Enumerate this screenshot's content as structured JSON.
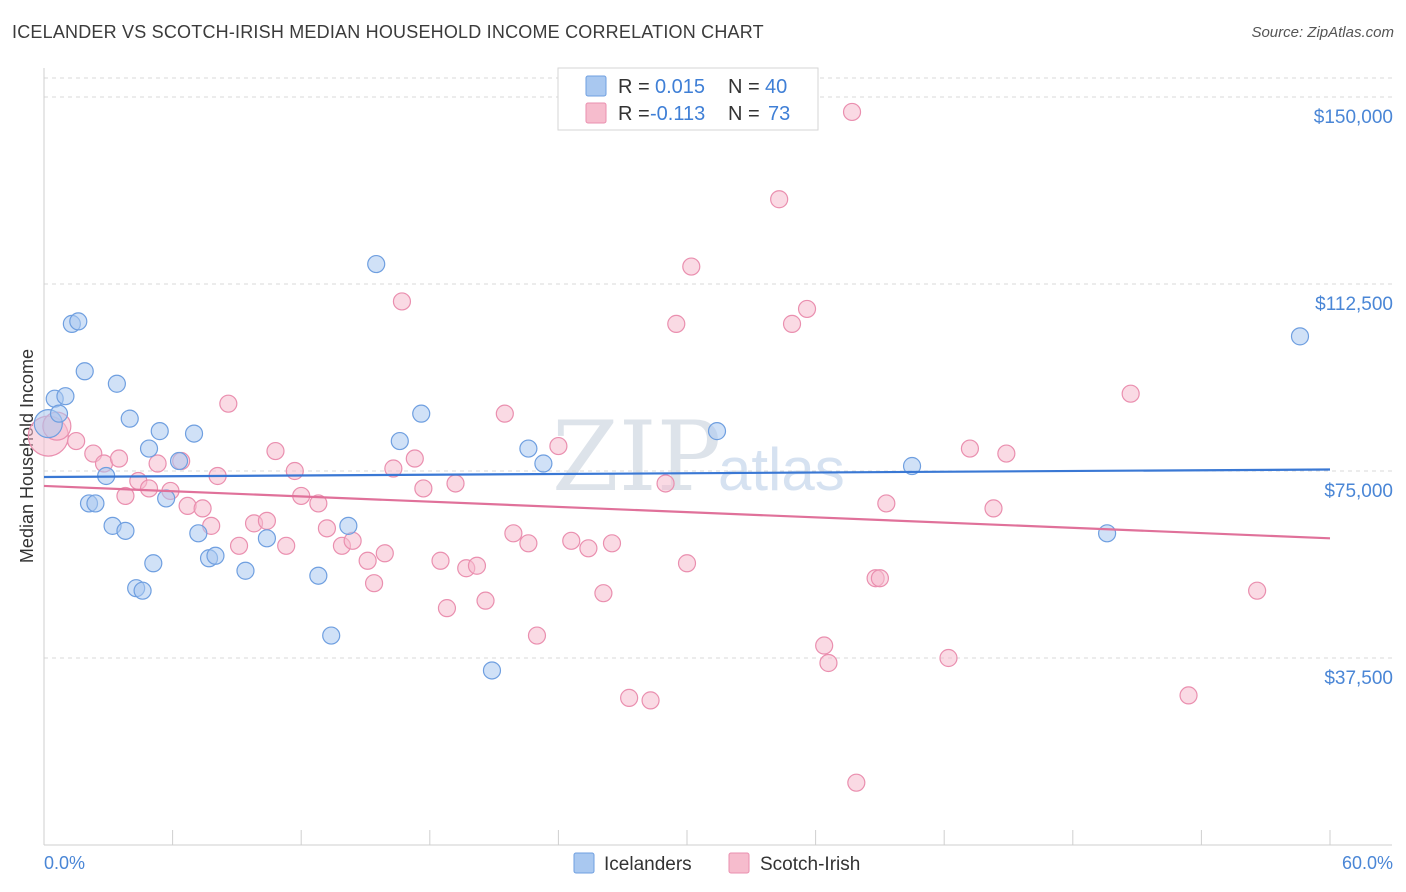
{
  "header": {
    "title": "ICELANDER VS SCOTCH-IRISH MEDIAN HOUSEHOLD INCOME CORRELATION CHART",
    "source": "Source: ZipAtlas.com"
  },
  "watermark": {
    "zip": "ZIP",
    "atlas": "atlas"
  },
  "colors": {
    "blue_fill": "#a9c8f0",
    "blue_stroke": "#6f9fe0",
    "blue_line": "#3a78d4",
    "pink_fill": "#f6bccd",
    "pink_stroke": "#ea8faf",
    "pink_line": "#e0719a",
    "grid": "#d8d8d8",
    "axis_label": "#4a86d6"
  },
  "legend": {
    "rows": [
      {
        "r_label": "R =",
        "r_value": "0.015",
        "n_label": "N =",
        "n_value": "40",
        "series": "blue"
      },
      {
        "r_label": "R =",
        "r_value": "-0.113",
        "n_label": "N =",
        "n_value": "73",
        "series": "pink"
      }
    ]
  },
  "bottom_legend": {
    "items": [
      "Icelanders",
      "Scotch-Irish"
    ]
  },
  "chart_data": {
    "type": "scatter",
    "title": "ICELANDER VS SCOTCH-IRISH MEDIAN HOUSEHOLD INCOME CORRELATION CHART",
    "xlabel": "",
    "ylabel": "Median Household Income",
    "xlim": [
      0,
      60
    ],
    "ylim": [
      0,
      155000
    ],
    "x_tick_labels": [
      "0.0%",
      "60.0%"
    ],
    "y_ticks": [
      37500,
      75000,
      112500,
      150000
    ],
    "y_tick_labels": [
      "$37,500",
      "$75,000",
      "$112,500",
      "$150,000"
    ],
    "grid": "horizontal dashed",
    "legend_position": "top-center",
    "series": [
      {
        "name": "Icelanders",
        "color": "#a9c8f0",
        "trend": {
          "x": [
            0,
            60
          ],
          "y": [
            73800,
            75300
          ]
        },
        "points": [
          [
            0.2,
            84500,
            2
          ],
          [
            0.5,
            89500,
            1
          ],
          [
            0.7,
            86500,
            1
          ],
          [
            1.0,
            90000,
            1
          ],
          [
            1.3,
            104500,
            1
          ],
          [
            1.6,
            105000,
            1
          ],
          [
            1.9,
            95000,
            1
          ],
          [
            2.1,
            68500,
            1
          ],
          [
            2.4,
            68500,
            1
          ],
          [
            2.9,
            74000,
            1
          ],
          [
            3.2,
            64000,
            1
          ],
          [
            3.4,
            92500,
            1
          ],
          [
            3.8,
            63000,
            1
          ],
          [
            4.0,
            85500,
            1
          ],
          [
            4.3,
            51500,
            1
          ],
          [
            4.6,
            51000,
            1
          ],
          [
            4.9,
            79500,
            1
          ],
          [
            5.1,
            56500,
            1
          ],
          [
            5.4,
            83000,
            1
          ],
          [
            5.7,
            69500,
            1
          ],
          [
            6.3,
            77000,
            1
          ],
          [
            7.0,
            82500,
            1
          ],
          [
            7.2,
            62500,
            1
          ],
          [
            7.7,
            57500,
            1
          ],
          [
            8.0,
            58000,
            1
          ],
          [
            9.4,
            55000,
            1
          ],
          [
            10.4,
            61500,
            1
          ],
          [
            12.8,
            54000,
            1
          ],
          [
            13.4,
            42000,
            1
          ],
          [
            14.2,
            64000,
            1
          ],
          [
            15.5,
            116500,
            1
          ],
          [
            16.6,
            81000,
            1
          ],
          [
            17.6,
            86500,
            1
          ],
          [
            20.9,
            35000,
            1
          ],
          [
            22.6,
            79500,
            1
          ],
          [
            23.3,
            76500,
            1
          ],
          [
            31.4,
            83000,
            1
          ],
          [
            40.5,
            76000,
            1
          ],
          [
            49.6,
            62500,
            1
          ],
          [
            58.6,
            102000,
            1
          ]
        ]
      },
      {
        "name": "Scotch-Irish",
        "color": "#f6bccd",
        "trend": {
          "x": [
            0,
            60
          ],
          "y": [
            72000,
            61500
          ]
        },
        "points": [
          [
            0.2,
            82000,
            3
          ],
          [
            0.6,
            84000,
            2
          ],
          [
            1.5,
            81000,
            1
          ],
          [
            2.3,
            78500,
            1
          ],
          [
            2.8,
            76500,
            1
          ],
          [
            3.5,
            77500,
            1
          ],
          [
            3.8,
            70000,
            1
          ],
          [
            4.4,
            73000,
            1
          ],
          [
            4.9,
            71500,
            1
          ],
          [
            5.3,
            76500,
            1
          ],
          [
            5.9,
            71000,
            1
          ],
          [
            6.4,
            77000,
            1
          ],
          [
            6.7,
            68000,
            1
          ],
          [
            7.4,
            67500,
            1
          ],
          [
            7.8,
            64000,
            1
          ],
          [
            8.1,
            74000,
            1
          ],
          [
            8.6,
            88500,
            1
          ],
          [
            9.1,
            60000,
            1
          ],
          [
            9.8,
            64500,
            1
          ],
          [
            10.4,
            65000,
            1
          ],
          [
            10.8,
            79000,
            1
          ],
          [
            11.3,
            60000,
            1
          ],
          [
            11.7,
            75000,
            1
          ],
          [
            12.0,
            70000,
            1
          ],
          [
            12.8,
            68500,
            1
          ],
          [
            13.2,
            63500,
            1
          ],
          [
            13.9,
            60000,
            1
          ],
          [
            14.4,
            61000,
            1
          ],
          [
            15.1,
            57000,
            1
          ],
          [
            15.4,
            52500,
            1
          ],
          [
            15.9,
            58500,
            1
          ],
          [
            16.3,
            75500,
            1
          ],
          [
            16.7,
            109000,
            1
          ],
          [
            17.3,
            77500,
            1
          ],
          [
            17.7,
            71500,
            1
          ],
          [
            18.5,
            57000,
            1
          ],
          [
            18.8,
            47500,
            1
          ],
          [
            19.2,
            72500,
            1
          ],
          [
            19.7,
            55500,
            1
          ],
          [
            20.2,
            56000,
            1
          ],
          [
            20.6,
            49000,
            1
          ],
          [
            21.5,
            86500,
            1
          ],
          [
            21.9,
            62500,
            1
          ],
          [
            22.6,
            60500,
            1
          ],
          [
            23.0,
            42000,
            1
          ],
          [
            24.0,
            80000,
            1
          ],
          [
            24.6,
            61000,
            1
          ],
          [
            25.4,
            59500,
            1
          ],
          [
            26.1,
            50500,
            1
          ],
          [
            26.5,
            60500,
            1
          ],
          [
            27.3,
            29500,
            1
          ],
          [
            28.3,
            29000,
            1
          ],
          [
            29.0,
            72500,
            1
          ],
          [
            29.5,
            104500,
            1
          ],
          [
            30.0,
            56500,
            1
          ],
          [
            30.2,
            116000,
            1
          ],
          [
            34.3,
            129500,
            1
          ],
          [
            34.9,
            104500,
            1
          ],
          [
            35.6,
            107500,
            1
          ],
          [
            36.4,
            40000,
            1
          ],
          [
            36.6,
            36500,
            1
          ],
          [
            37.7,
            147000,
            1
          ],
          [
            38.8,
            53500,
            1
          ],
          [
            37.9,
            12500,
            1
          ],
          [
            39.3,
            68500,
            1
          ],
          [
            42.2,
            37500,
            1
          ],
          [
            43.2,
            79500,
            1
          ],
          [
            44.3,
            67500,
            1
          ],
          [
            44.9,
            78500,
            1
          ],
          [
            50.7,
            90500,
            1
          ],
          [
            53.4,
            30000,
            1
          ],
          [
            56.6,
            51000,
            1
          ],
          [
            39.0,
            53500,
            1
          ]
        ]
      }
    ]
  }
}
